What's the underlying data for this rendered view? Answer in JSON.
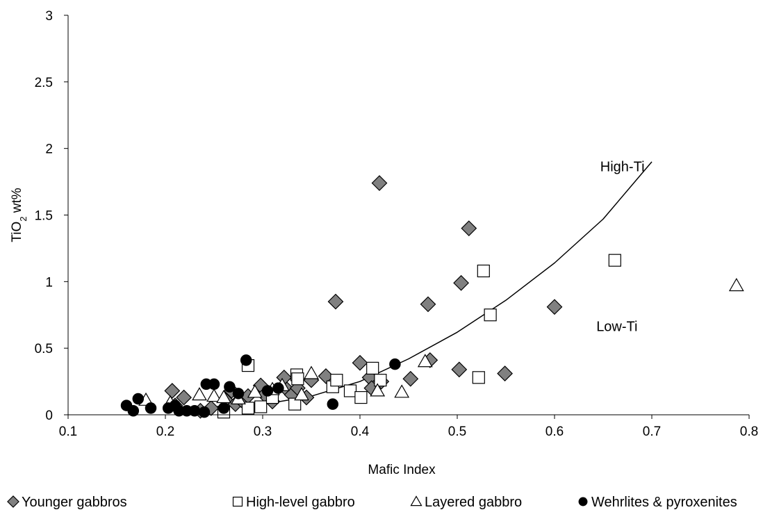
{
  "chart_data": {
    "type": "scatter",
    "xlabel": "Mafic Index",
    "ylabel_main": "TiO",
    "ylabel_sub": "2",
    "ylabel_rest": " wt%",
    "xlim": [
      0.1,
      0.8
    ],
    "ylim": [
      0,
      3
    ],
    "x_ticks": [
      "0.1",
      "0.2",
      "0.3",
      "0.4",
      "0.5",
      "0.6",
      "0.7",
      "0.8"
    ],
    "y_ticks": [
      "0",
      "0.5",
      "1",
      "1.5",
      "2",
      "2.5",
      "3"
    ],
    "grid": false,
    "legend_position": "bottom",
    "annotations": [
      {
        "text": "High-Ti",
        "x": 0.647,
        "y": 1.83
      },
      {
        "text": "Low-Ti",
        "x": 0.643,
        "y": 0.63
      }
    ],
    "curve": {
      "color": "#000000",
      "points": [
        [
          0.31,
          0.09
        ],
        [
          0.35,
          0.14
        ],
        [
          0.4,
          0.25
        ],
        [
          0.45,
          0.42
        ],
        [
          0.5,
          0.62
        ],
        [
          0.55,
          0.86
        ],
        [
          0.6,
          1.14
        ],
        [
          0.65,
          1.47
        ],
        [
          0.7,
          1.9
        ]
      ]
    },
    "series": [
      {
        "name": "Younger gabbros",
        "marker": "diamond",
        "fill": "#808080",
        "stroke": "#000000",
        "points": [
          [
            0.207,
            0.18
          ],
          [
            0.21,
            0.07
          ],
          [
            0.219,
            0.13
          ],
          [
            0.236,
            0.03
          ],
          [
            0.247,
            0.05
          ],
          [
            0.262,
            0.11
          ],
          [
            0.268,
            0.18
          ],
          [
            0.272,
            0.08
          ],
          [
            0.278,
            0.11
          ],
          [
            0.285,
            0.14
          ],
          [
            0.298,
            0.22
          ],
          [
            0.302,
            0.15
          ],
          [
            0.31,
            0.1
          ],
          [
            0.322,
            0.28
          ],
          [
            0.325,
            0.19
          ],
          [
            0.33,
            0.15
          ],
          [
            0.336,
            0.2
          ],
          [
            0.345,
            0.13
          ],
          [
            0.35,
            0.26
          ],
          [
            0.365,
            0.29
          ],
          [
            0.375,
            0.85
          ],
          [
            0.4,
            0.39
          ],
          [
            0.41,
            0.28
          ],
          [
            0.412,
            0.2
          ],
          [
            0.42,
            1.74
          ],
          [
            0.422,
            0.25
          ],
          [
            0.452,
            0.27
          ],
          [
            0.47,
            0.83
          ],
          [
            0.472,
            0.41
          ],
          [
            0.502,
            0.34
          ],
          [
            0.504,
            0.99
          ],
          [
            0.512,
            1.4
          ],
          [
            0.549,
            0.31
          ],
          [
            0.6,
            0.81
          ]
        ]
      },
      {
        "name": "High-level gabbro",
        "marker": "square",
        "fill": "#ffffff",
        "stroke": "#000000",
        "points": [
          [
            0.26,
            0.02
          ],
          [
            0.285,
            0.37
          ],
          [
            0.285,
            0.05
          ],
          [
            0.298,
            0.06
          ],
          [
            0.31,
            0.13
          ],
          [
            0.333,
            0.08
          ],
          [
            0.335,
            0.3
          ],
          [
            0.336,
            0.27
          ],
          [
            0.372,
            0.21
          ],
          [
            0.376,
            0.26
          ],
          [
            0.39,
            0.18
          ],
          [
            0.401,
            0.13
          ],
          [
            0.413,
            0.35
          ],
          [
            0.421,
            0.26
          ],
          [
            0.522,
            0.28
          ],
          [
            0.527,
            1.08
          ],
          [
            0.534,
            0.75
          ],
          [
            0.662,
            1.16
          ]
        ]
      },
      {
        "name": "Layered gabbro",
        "marker": "triangle",
        "fill": "#ffffff",
        "stroke": "#000000",
        "points": [
          [
            0.18,
            0.11
          ],
          [
            0.205,
            0.09
          ],
          [
            0.235,
            0.15
          ],
          [
            0.25,
            0.14
          ],
          [
            0.26,
            0.13
          ],
          [
            0.275,
            0.12
          ],
          [
            0.292,
            0.17
          ],
          [
            0.31,
            0.19
          ],
          [
            0.32,
            0.22
          ],
          [
            0.34,
            0.15
          ],
          [
            0.35,
            0.31
          ],
          [
            0.418,
            0.18
          ],
          [
            0.443,
            0.17
          ],
          [
            0.467,
            0.4
          ],
          [
            0.787,
            0.97
          ]
        ]
      },
      {
        "name": "Wehrlites & pyroxenites",
        "marker": "circle",
        "fill": "#000000",
        "stroke": "#000000",
        "points": [
          [
            0.16,
            0.07
          ],
          [
            0.167,
            0.03
          ],
          [
            0.172,
            0.12
          ],
          [
            0.185,
            0.05
          ],
          [
            0.203,
            0.05
          ],
          [
            0.21,
            0.07
          ],
          [
            0.214,
            0.03
          ],
          [
            0.222,
            0.03
          ],
          [
            0.23,
            0.03
          ],
          [
            0.24,
            0.02
          ],
          [
            0.242,
            0.23
          ],
          [
            0.25,
            0.23
          ],
          [
            0.26,
            0.05
          ],
          [
            0.266,
            0.21
          ],
          [
            0.275,
            0.16
          ],
          [
            0.283,
            0.41
          ],
          [
            0.305,
            0.18
          ],
          [
            0.316,
            0.2
          ],
          [
            0.372,
            0.08
          ],
          [
            0.436,
            0.38
          ]
        ]
      }
    ]
  }
}
